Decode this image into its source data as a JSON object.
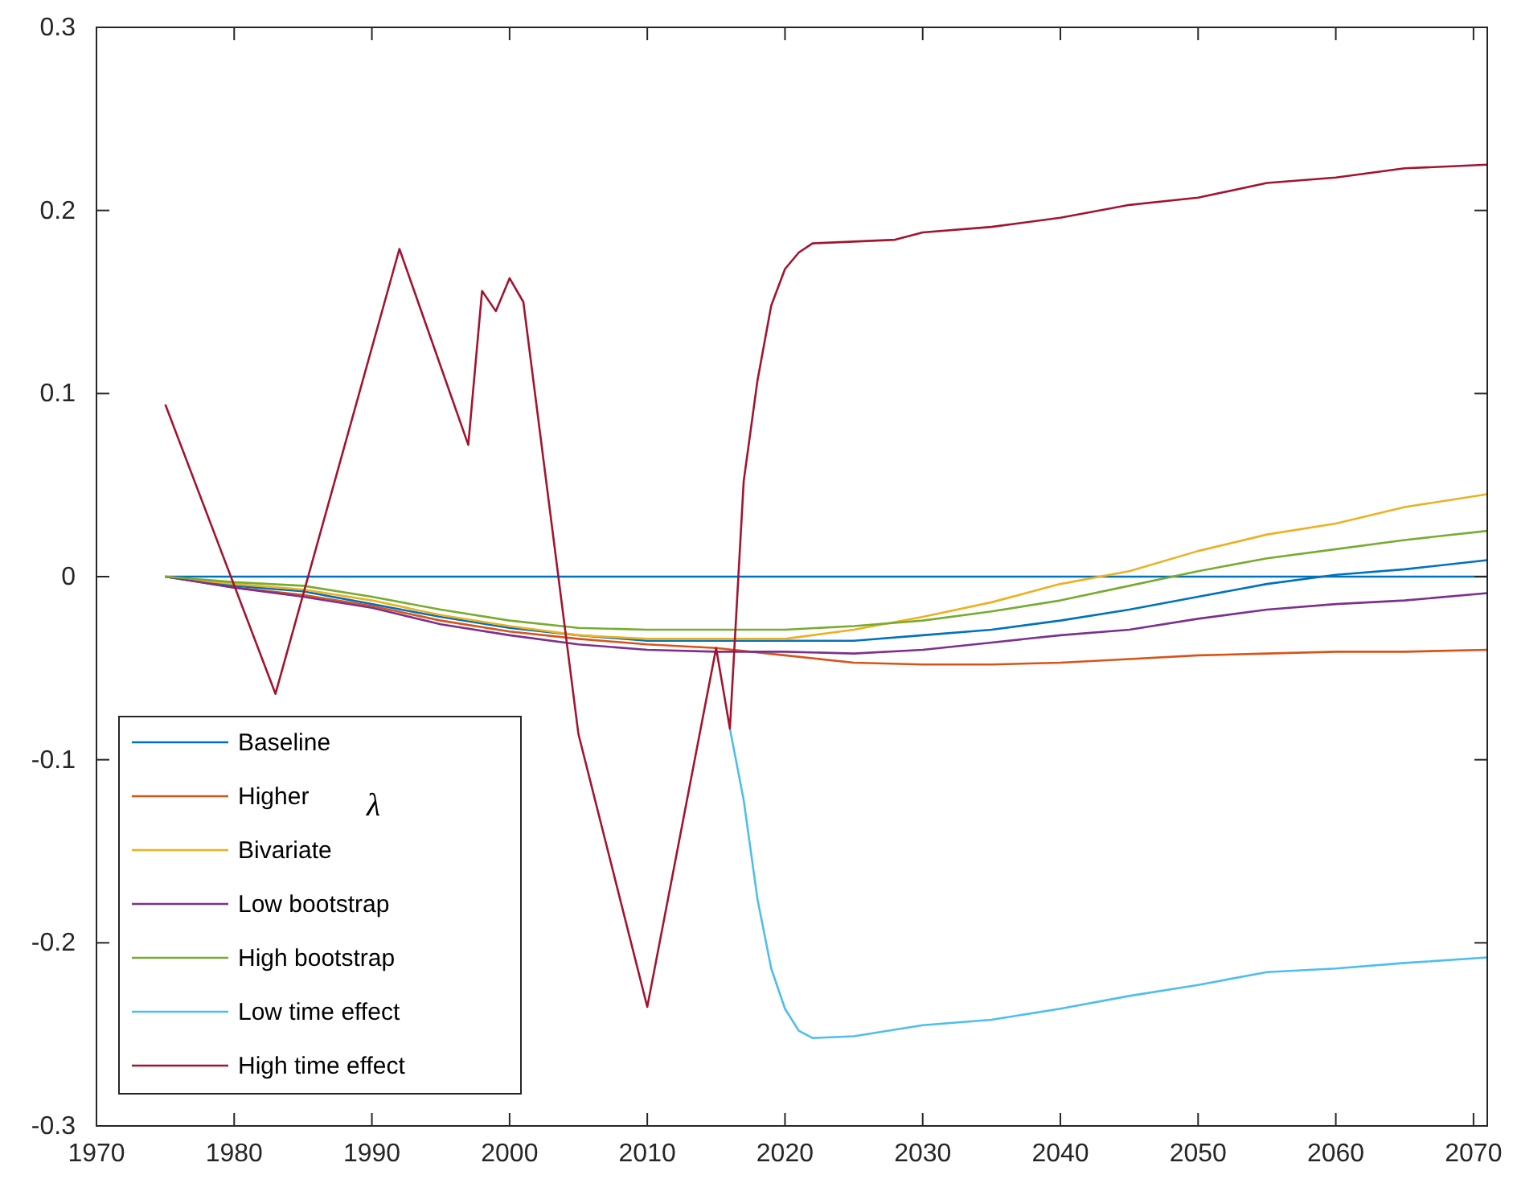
{
  "chart_data": {
    "type": "line",
    "x": [
      1975,
      1980,
      1985,
      1990,
      1995,
      2000,
      2005,
      2010,
      2015,
      2020,
      2025,
      2030,
      2035,
      2040,
      2045,
      2050,
      2055,
      2060,
      2065,
      2071
    ],
    "series": [
      {
        "color": "#0072bd",
        "x": [
          1975,
          2071
        ],
        "values": [
          0,
          0
        ]
      },
      {
        "name": "Baseline",
        "color": "#0072bd",
        "values": [
          0,
          -0.005,
          -0.008,
          -0.015,
          -0.022,
          -0.028,
          -0.032,
          -0.035,
          -0.035,
          -0.035,
          -0.035,
          -0.032,
          -0.029,
          -0.024,
          -0.018,
          -0.011,
          -0.004,
          0.001,
          0.004,
          0.009
        ]
      },
      {
        "name": "Higher",
        "color": "#d95319",
        "values": [
          0,
          -0.006,
          -0.01,
          -0.016,
          -0.024,
          -0.03,
          -0.034,
          -0.037,
          -0.039,
          -0.043,
          -0.047,
          -0.048,
          -0.048,
          -0.047,
          -0.045,
          -0.043,
          -0.042,
          -0.041,
          -0.041,
          -0.04
        ]
      },
      {
        "name": "Bivariate",
        "color": "#edb120",
        "values": [
          0,
          -0.004,
          -0.007,
          -0.013,
          -0.021,
          -0.027,
          -0.032,
          -0.034,
          -0.034,
          -0.034,
          -0.029,
          -0.022,
          -0.014,
          -0.004,
          0.003,
          0.014,
          0.023,
          0.029,
          0.038,
          0.045
        ]
      },
      {
        "name": "Low bootstrap",
        "color": "#7e2f8e",
        "values": [
          0,
          -0.006,
          -0.011,
          -0.017,
          -0.026,
          -0.032,
          -0.037,
          -0.04,
          -0.041,
          -0.041,
          -0.042,
          -0.04,
          -0.036,
          -0.032,
          -0.029,
          -0.023,
          -0.018,
          -0.015,
          -0.013,
          -0.009
        ]
      },
      {
        "name": "High bootstrap",
        "color": "#77ac30",
        "values": [
          0,
          -0.003,
          -0.005,
          -0.011,
          -0.018,
          -0.024,
          -0.028,
          -0.029,
          -0.029,
          -0.029,
          -0.027,
          -0.024,
          -0.019,
          -0.013,
          -0.005,
          0.003,
          0.01,
          0.015,
          0.02,
          0.025
        ]
      },
      {
        "name": "Low time effect",
        "color": "#4dbeee",
        "x": [
          2016,
          2017,
          2018,
          2019,
          2020,
          2021,
          2022,
          2025,
          2030,
          2035,
          2040,
          2045,
          2050,
          2055,
          2060,
          2065,
          2071
        ],
        "values": [
          -0.083,
          -0.122,
          -0.176,
          -0.214,
          -0.236,
          -0.248,
          -0.252,
          -0.251,
          -0.245,
          -0.242,
          -0.236,
          -0.229,
          -0.223,
          -0.216,
          -0.214,
          -0.211,
          -0.208
        ]
      },
      {
        "name": "High time effect",
        "color": "#a2142f",
        "x": [
          1975,
          1983,
          1992,
          1997,
          1998,
          1999,
          2000,
          2001,
          2005,
          2010,
          2015,
          2016,
          2017,
          2018,
          2019,
          2020,
          2021,
          2022,
          2025,
          2028,
          2030,
          2035,
          2040,
          2045,
          2050,
          2055,
          2060,
          2065,
          2071
        ],
        "values": [
          0.094,
          -0.064,
          0.179,
          0.072,
          0.156,
          0.145,
          0.163,
          0.15,
          -0.086,
          -0.235,
          -0.039,
          -0.083,
          0.052,
          0.107,
          0.148,
          0.168,
          0.177,
          0.182,
          0.183,
          0.184,
          0.188,
          0.191,
          0.196,
          0.203,
          0.207,
          0.215,
          0.218,
          0.223,
          0.225
        ]
      }
    ],
    "xlim": [
      1970,
      2071
    ],
    "xticks": [
      1970,
      1980,
      1990,
      2000,
      2010,
      2020,
      2030,
      2040,
      2050,
      2060,
      2070
    ],
    "ylim": [
      -0.3,
      0.3
    ],
    "yticks": [
      -0.3,
      -0.2,
      -0.1,
      0,
      0.1,
      0.2,
      0.3
    ],
    "annotations": [
      "λ"
    ],
    "legend": "bottom left",
    "grid": false,
    "marker": "none",
    "line_style": "solid"
  }
}
